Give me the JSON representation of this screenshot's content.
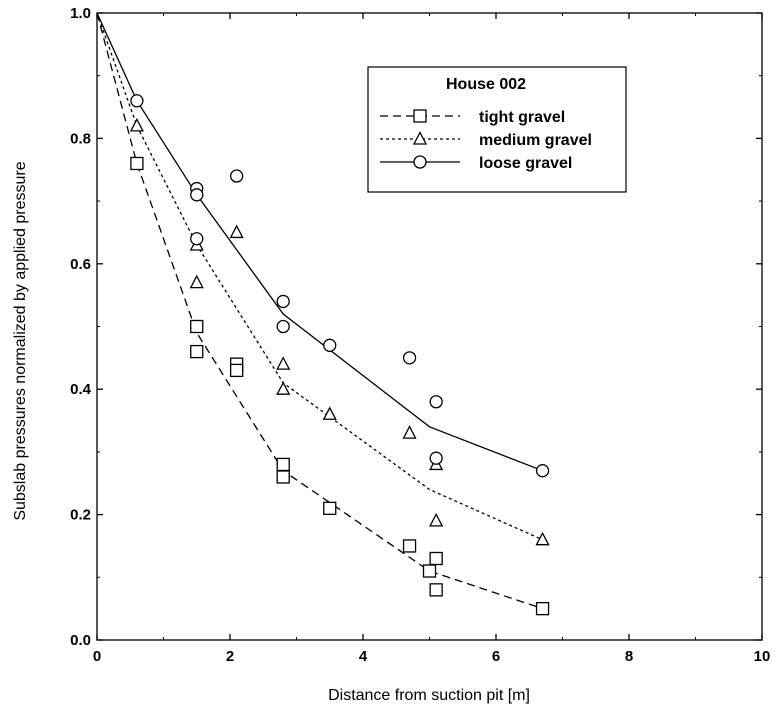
{
  "chart_data": {
    "type": "scatter",
    "title": "",
    "xlabel": "Distance from suction pit [m]",
    "ylabel": "Subslab pressures normalized by applied pressure",
    "xlim": [
      0,
      10
    ],
    "ylim": [
      0,
      1.0
    ],
    "x_ticks": [
      0,
      2,
      4,
      6,
      8,
      10
    ],
    "y_ticks": [
      0.0,
      0.2,
      0.4,
      0.6,
      0.8,
      1.0
    ],
    "x_tick_labels": [
      "0",
      "2",
      "4",
      "6",
      "8",
      "10"
    ],
    "y_tick_labels": [
      "0.0",
      "0.2",
      "0.4",
      "0.6",
      "0.8",
      "1.0"
    ],
    "grid": false,
    "legend": {
      "title": "House 002",
      "position": "top-right"
    },
    "series": [
      {
        "name": "tight gravel",
        "marker": "square",
        "line_style": "dashed",
        "points": [
          [
            0.6,
            0.76
          ],
          [
            1.5,
            0.5
          ],
          [
            1.5,
            0.46
          ],
          [
            2.1,
            0.44
          ],
          [
            2.1,
            0.43
          ],
          [
            2.8,
            0.28
          ],
          [
            2.8,
            0.26
          ],
          [
            3.5,
            0.21
          ],
          [
            4.7,
            0.15
          ],
          [
            5.0,
            0.11
          ],
          [
            5.1,
            0.13
          ],
          [
            5.1,
            0.08
          ],
          [
            6.7,
            0.05
          ]
        ],
        "fit": [
          [
            0.0,
            1.0
          ],
          [
            0.6,
            0.76
          ],
          [
            1.5,
            0.49
          ],
          [
            2.8,
            0.27
          ],
          [
            5.0,
            0.11
          ],
          [
            6.7,
            0.05
          ]
        ]
      },
      {
        "name": "medium gravel",
        "marker": "triangle",
        "line_style": "dotted",
        "points": [
          [
            0.6,
            0.82
          ],
          [
            1.5,
            0.63
          ],
          [
            1.5,
            0.57
          ],
          [
            2.1,
            0.65
          ],
          [
            2.8,
            0.44
          ],
          [
            2.8,
            0.4
          ],
          [
            3.5,
            0.36
          ],
          [
            4.7,
            0.33
          ],
          [
            5.1,
            0.28
          ],
          [
            5.1,
            0.19
          ],
          [
            6.7,
            0.16
          ]
        ],
        "fit": [
          [
            0.0,
            1.0
          ],
          [
            0.6,
            0.82
          ],
          [
            1.5,
            0.63
          ],
          [
            2.8,
            0.41
          ],
          [
            5.0,
            0.24
          ],
          [
            6.7,
            0.16
          ]
        ]
      },
      {
        "name": "loose gravel",
        "marker": "circle",
        "line_style": "solid",
        "points": [
          [
            0.6,
            0.86
          ],
          [
            1.5,
            0.72
          ],
          [
            1.5,
            0.71
          ],
          [
            1.5,
            0.64
          ],
          [
            2.1,
            0.74
          ],
          [
            2.8,
            0.54
          ],
          [
            2.8,
            0.5
          ],
          [
            3.5,
            0.47
          ],
          [
            4.7,
            0.45
          ],
          [
            5.1,
            0.38
          ],
          [
            5.1,
            0.29
          ],
          [
            6.7,
            0.27
          ]
        ],
        "fit": [
          [
            0.0,
            1.0
          ],
          [
            0.6,
            0.86
          ],
          [
            1.5,
            0.71
          ],
          [
            2.8,
            0.52
          ],
          [
            5.0,
            0.34
          ],
          [
            6.7,
            0.27
          ]
        ]
      }
    ]
  }
}
